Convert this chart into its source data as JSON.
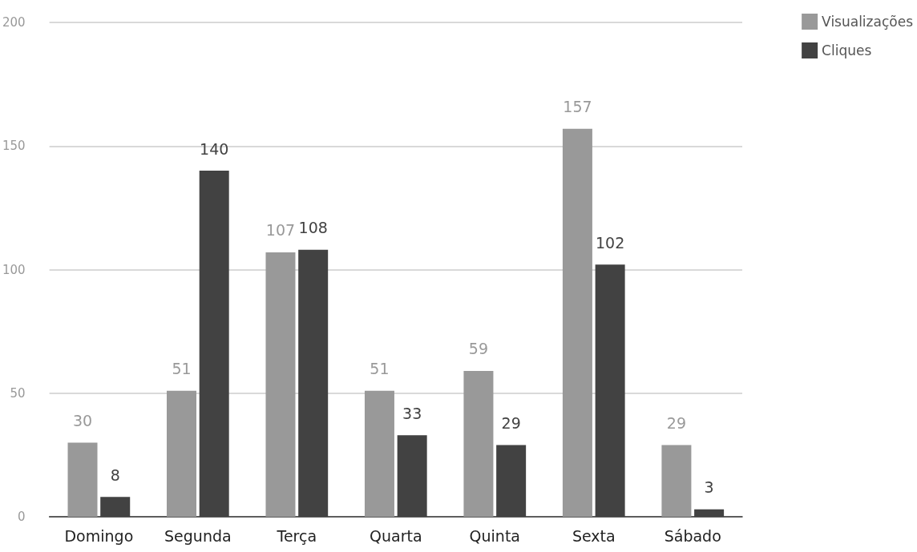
{
  "chart_data": {
    "type": "bar",
    "categories": [
      "Domingo",
      "Segunda",
      "Terça",
      "Quarta",
      "Quinta",
      "Sexta",
      "Sábado"
    ],
    "series": [
      {
        "name": "Visualizações",
        "color": "#999999",
        "values": [
          30,
          51,
          107,
          51,
          59,
          157,
          29
        ]
      },
      {
        "name": "Cliques",
        "color": "#424242",
        "values": [
          8,
          140,
          108,
          33,
          29,
          102,
          3
        ]
      }
    ],
    "ylim": [
      0,
      200
    ],
    "yticks": [
      0,
      50,
      100,
      150,
      200
    ],
    "grid": "y",
    "legend": "top right",
    "data_labels": true
  }
}
